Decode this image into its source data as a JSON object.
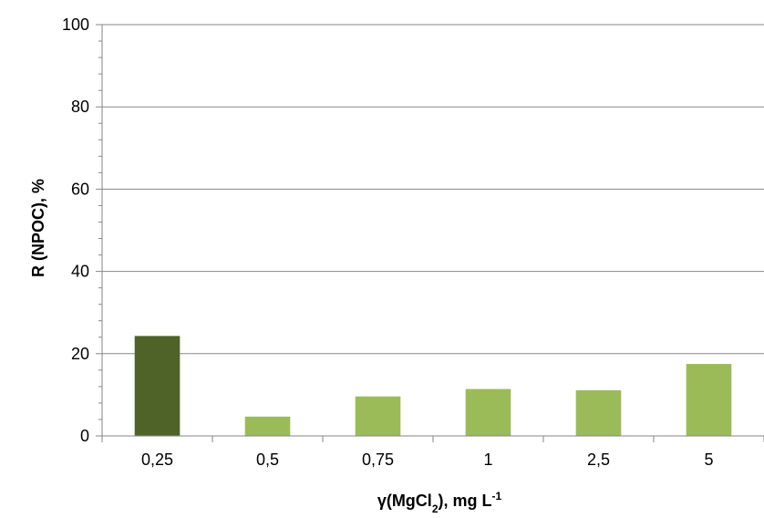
{
  "chart_data": {
    "type": "bar",
    "xlabel": {
      "prefix": "γ(MgCl",
      "subscript": "2",
      "middle": "), mg L",
      "superscript": "-1"
    },
    "ylabel": "R (NPOC), %",
    "categories": [
      "0,25",
      "0,5",
      "0,75",
      "1",
      "2,5",
      "5"
    ],
    "values": [
      24.3,
      4.7,
      9.6,
      11.4,
      11.1,
      17.5
    ],
    "bar_colors": [
      "#4f6228",
      "#9bbb59",
      "#9bbb59",
      "#9bbb59",
      "#9bbb59",
      "#9bbb59"
    ],
    "ylim": [
      0,
      100
    ],
    "yticks": [
      0,
      20,
      40,
      60,
      80,
      100
    ],
    "grid": true,
    "grid_color": "#868686",
    "axis_color": "#868686"
  }
}
